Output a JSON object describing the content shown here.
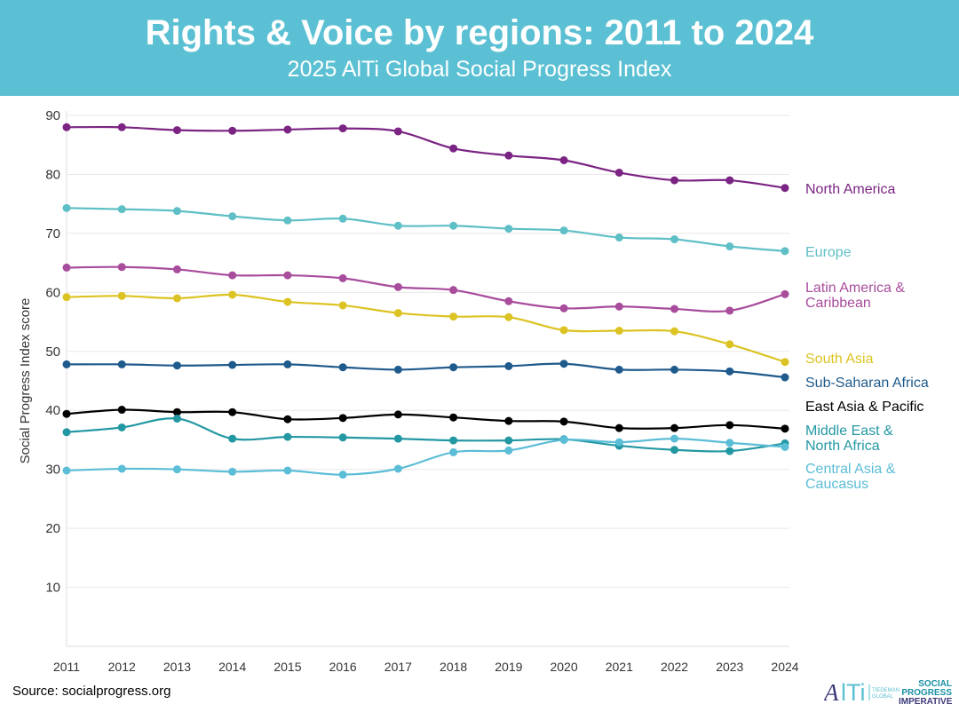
{
  "header": {
    "title": "Rights & Voice by regions: 2011 to 2024",
    "subtitle": "2025 AlTi Global Social Progress Index"
  },
  "source": "Source: socialprogress.org",
  "logos": {
    "alti": "AlTi",
    "alti_sub": "TIEDEMANN GLOBAL",
    "spi": "SOCIAL PROGRESS IMPERATIVE"
  },
  "chart_data": {
    "type": "line",
    "title": "Rights & Voice by regions: 2011 to 2024",
    "subtitle": "2025 AlTi Global Social Progress Index",
    "xlabel": "",
    "ylabel": "Social Progress Index score",
    "ylim": [
      0,
      90
    ],
    "yticks": [
      10,
      20,
      30,
      40,
      50,
      60,
      70,
      80,
      90
    ],
    "grid": true,
    "legend": "right-end labels",
    "x": [
      2011,
      2012,
      2013,
      2014,
      2015,
      2016,
      2017,
      2018,
      2019,
      2020,
      2021,
      2022,
      2023,
      2024
    ],
    "series": [
      {
        "name": "North America",
        "color": "#7b2483",
        "values": [
          88.0,
          88.0,
          87.5,
          87.4,
          87.6,
          87.8,
          87.3,
          84.4,
          83.2,
          82.4,
          80.3,
          79.0,
          79.0,
          77.7
        ]
      },
      {
        "name": "Europe",
        "color": "#5fbfc6",
        "values": [
          74.3,
          74.1,
          73.8,
          72.9,
          72.2,
          72.5,
          71.3,
          71.3,
          70.8,
          70.5,
          69.3,
          69.0,
          67.8,
          67.0
        ]
      },
      {
        "name": "Latin America & Caribbean",
        "color": "#a84c9c",
        "values": [
          64.2,
          64.3,
          63.9,
          62.9,
          62.9,
          62.4,
          60.9,
          60.4,
          58.5,
          57.3,
          57.6,
          57.2,
          56.9,
          59.7
        ]
      },
      {
        "name": "South Asia",
        "color": "#dcc323",
        "values": [
          59.2,
          59.4,
          59.0,
          59.6,
          58.4,
          57.8,
          56.5,
          55.9,
          55.8,
          53.6,
          53.5,
          53.4,
          51.2,
          48.2
        ]
      },
      {
        "name": "Sub-Saharan Africa",
        "color": "#1f5a8c",
        "values": [
          47.8,
          47.8,
          47.6,
          47.7,
          47.8,
          47.3,
          46.9,
          47.3,
          47.5,
          47.9,
          46.9,
          46.9,
          46.6,
          45.6
        ]
      },
      {
        "name": "East Asia & Pacific",
        "color": "#000000",
        "values": [
          39.4,
          40.1,
          39.7,
          39.7,
          38.5,
          38.7,
          39.3,
          38.8,
          38.2,
          38.1,
          37.0,
          37.0,
          37.5,
          36.9
        ]
      },
      {
        "name": "Middle East & North Africa",
        "color": "#2398a3",
        "values": [
          36.3,
          37.1,
          38.6,
          35.2,
          35.5,
          35.4,
          35.2,
          34.9,
          34.9,
          35.1,
          34.0,
          33.3,
          33.1,
          34.4
        ]
      },
      {
        "name": "Central Asia & Caucasus",
        "color": "#5bbdd6",
        "values": [
          29.8,
          30.1,
          30.0,
          29.6,
          29.8,
          29.1,
          30.1,
          32.9,
          33.2,
          35.0,
          34.6,
          35.2,
          34.5,
          33.8
        ]
      }
    ],
    "labels": [
      {
        "lines": [
          "North America"
        ]
      },
      {
        "lines": [
          "Europe"
        ]
      },
      {
        "lines": [
          "Latin America &",
          "Caribbean"
        ]
      },
      {
        "lines": [
          "South Asia"
        ]
      },
      {
        "lines": [
          "Sub-Saharan Africa"
        ]
      },
      {
        "lines": [
          "East Asia & Pacific"
        ]
      },
      {
        "lines": [
          "Middle East &",
          "North Africa"
        ]
      },
      {
        "lines": [
          "Central Asia &",
          "Caucasus"
        ]
      }
    ]
  }
}
